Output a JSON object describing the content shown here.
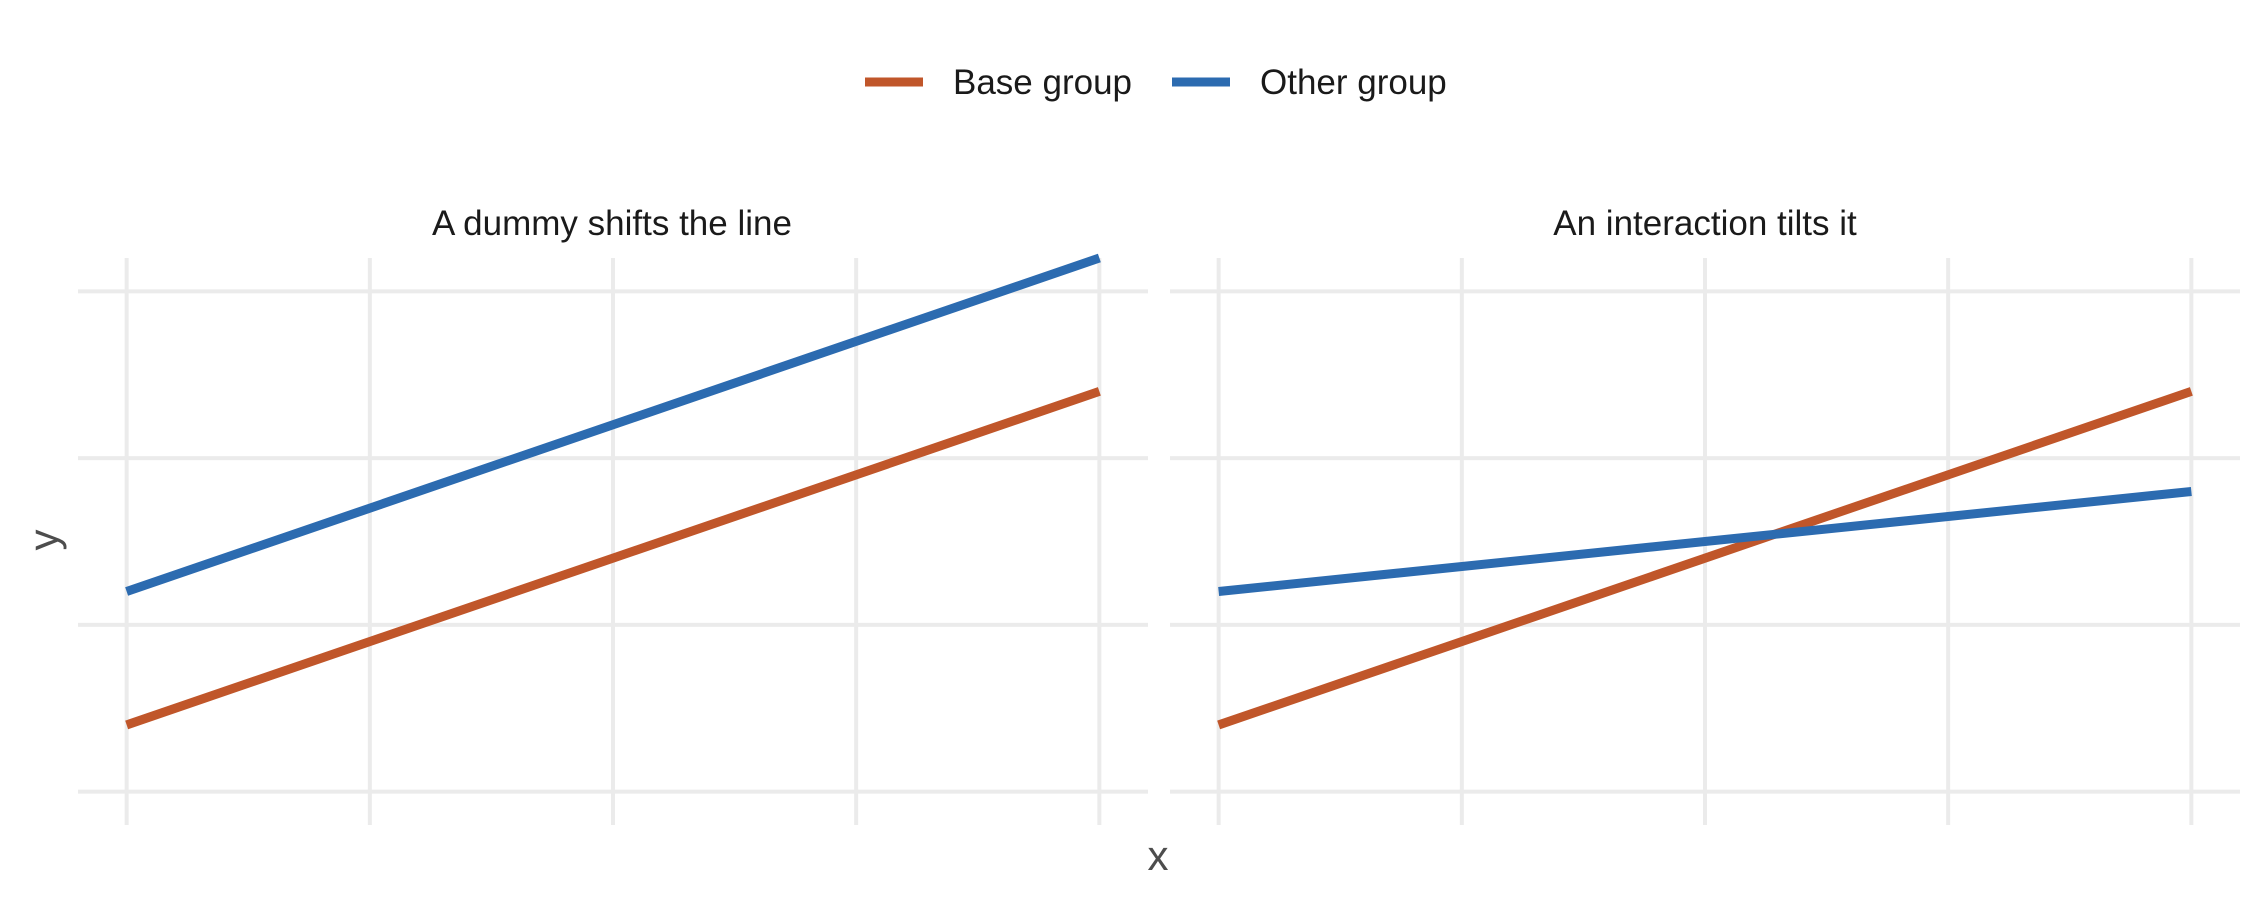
{
  "chart_data": {
    "type": "line",
    "xlabel": "x",
    "ylabel": "y",
    "x_ticks": [
      0,
      1,
      2,
      3,
      4
    ],
    "y_ticks": [
      0,
      1,
      2,
      3
    ],
    "xlim": [
      -0.2,
      4.2
    ],
    "ylim": [
      -0.2,
      3.2
    ],
    "grid": true,
    "legend": {
      "position": "top",
      "entries": [
        "Base group",
        "Other group"
      ]
    },
    "colors": {
      "Base group": "#c0562a",
      "Other group": "#2c6bb0"
    },
    "panels": [
      {
        "title": "A dummy shifts the line",
        "series": [
          {
            "name": "Base group",
            "x": [
              0,
              4
            ],
            "y": [
              0.4,
              2.4
            ]
          },
          {
            "name": "Other group",
            "x": [
              0,
              4
            ],
            "y": [
              1.2,
              3.2
            ]
          }
        ]
      },
      {
        "title": "An interaction tilts it",
        "series": [
          {
            "name": "Base group",
            "x": [
              0,
              4
            ],
            "y": [
              0.4,
              2.4
            ]
          },
          {
            "name": "Other group",
            "x": [
              0,
              4
            ],
            "y": [
              1.2,
              1.8
            ]
          }
        ]
      }
    ]
  }
}
